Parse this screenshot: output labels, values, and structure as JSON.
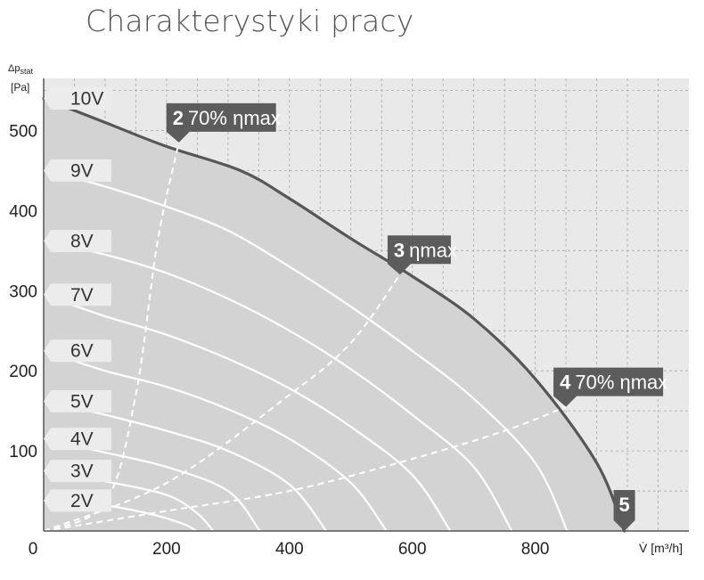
{
  "title": "Charakterystyki pracy",
  "chart_data": {
    "type": "line",
    "title": "",
    "xlabel": "V̇ [m³/h]",
    "ylabel_main": "Δp",
    "ylabel_sub": "stat",
    "ylabel_unit": "[Pa]",
    "xlim": [
      0,
      1050
    ],
    "ylim": [
      0,
      565
    ],
    "x_ticks": [
      0,
      200,
      400,
      600,
      800
    ],
    "y_ticks": [
      100,
      200,
      300,
      400,
      500
    ],
    "grid": true,
    "envelope_fill": "#d3d3d3",
    "voltage_curves": [
      {
        "label": "10V",
        "points": [
          [
            0,
            540
          ],
          [
            100,
            510
          ],
          [
            200,
            480
          ],
          [
            320,
            450
          ],
          [
            400,
            415
          ],
          [
            500,
            365
          ],
          [
            600,
            318
          ],
          [
            700,
            265
          ],
          [
            800,
            190
          ],
          [
            900,
            85
          ],
          [
            945,
            0
          ]
        ]
      },
      {
        "label": "9V",
        "points": [
          [
            0,
            450
          ],
          [
            100,
            430
          ],
          [
            200,
            405
          ],
          [
            300,
            375
          ],
          [
            400,
            330
          ],
          [
            500,
            280
          ],
          [
            600,
            225
          ],
          [
            700,
            165
          ],
          [
            800,
            85
          ],
          [
            852,
            0
          ]
        ]
      },
      {
        "label": "8V",
        "points": [
          [
            0,
            362
          ],
          [
            100,
            345
          ],
          [
            200,
            322
          ],
          [
            300,
            290
          ],
          [
            400,
            250
          ],
          [
            500,
            202
          ],
          [
            600,
            145
          ],
          [
            700,
            80
          ],
          [
            762,
            0
          ]
        ]
      },
      {
        "label": "7V",
        "points": [
          [
            0,
            295
          ],
          [
            100,
            268
          ],
          [
            200,
            245
          ],
          [
            300,
            215
          ],
          [
            400,
            178
          ],
          [
            500,
            130
          ],
          [
            600,
            70
          ],
          [
            662,
            0
          ]
        ]
      },
      {
        "label": "6V",
        "points": [
          [
            0,
            225
          ],
          [
            100,
            200
          ],
          [
            200,
            180
          ],
          [
            300,
            152
          ],
          [
            400,
            115
          ],
          [
            500,
            60
          ],
          [
            558,
            0
          ]
        ]
      },
      {
        "label": "5V",
        "points": [
          [
            0,
            162
          ],
          [
            100,
            145
          ],
          [
            200,
            125
          ],
          [
            300,
            100
          ],
          [
            400,
            58
          ],
          [
            460,
            0
          ]
        ]
      },
      {
        "label": "4V",
        "points": [
          [
            0,
            115
          ],
          [
            100,
            98
          ],
          [
            200,
            80
          ],
          [
            300,
            50
          ],
          [
            352,
            0
          ]
        ]
      },
      {
        "label": "3V",
        "points": [
          [
            0,
            75
          ],
          [
            100,
            62
          ],
          [
            200,
            45
          ],
          [
            250,
            22
          ],
          [
            276,
            0
          ]
        ]
      },
      {
        "label": "2V",
        "points": [
          [
            0,
            38
          ],
          [
            100,
            32
          ],
          [
            180,
            20
          ],
          [
            230,
            8
          ],
          [
            248,
            0
          ]
        ]
      }
    ],
    "operating_lines": [
      {
        "name": "2",
        "points": [
          [
            0,
            0
          ],
          [
            100,
            35
          ],
          [
            150,
            170
          ],
          [
            185,
            360
          ],
          [
            220,
            485
          ]
        ]
      },
      {
        "name": "3",
        "points": [
          [
            0,
            0
          ],
          [
            200,
            60
          ],
          [
            400,
            170
          ],
          [
            500,
            235
          ],
          [
            580,
            320
          ]
        ]
      },
      {
        "name": "4",
        "points": [
          [
            0,
            0
          ],
          [
            200,
            25
          ],
          [
            400,
            50
          ],
          [
            600,
            90
          ],
          [
            750,
            125
          ],
          [
            850,
            155
          ]
        ]
      }
    ],
    "point_flags": [
      {
        "num": "2",
        "text": "70% ηmax",
        "x": 220,
        "y": 485
      },
      {
        "num": "3",
        "text": "ηmax",
        "x": 580,
        "y": 320
      },
      {
        "num": "4",
        "text": "70% ηmax",
        "x": 850,
        "y": 155
      },
      {
        "num": "5",
        "text": "",
        "x": 945,
        "y": 0
      }
    ]
  }
}
